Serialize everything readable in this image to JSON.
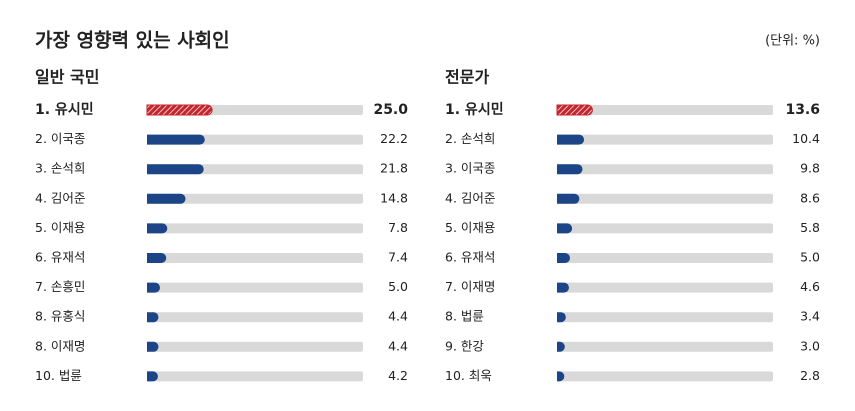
{
  "header": {
    "title": "가장 영향력 있는 사회인",
    "unit": "(단위: %)"
  },
  "chart_data": [
    {
      "type": "bar",
      "orientation": "horizontal",
      "title": "일반 국민",
      "categories": [
        "1. 유시민",
        "2. 이국종",
        "3. 손석희",
        "4. 김어준",
        "5. 이재용",
        "6. 유재석",
        "7. 손흥민",
        "8. 유홍식",
        "8. 이재명",
        "10. 법륜"
      ],
      "values": [
        25.0,
        22.2,
        21.8,
        14.8,
        7.8,
        7.4,
        5.0,
        4.4,
        4.4,
        4.2
      ],
      "value_labels": [
        "25.0",
        "22.2",
        "21.8",
        "14.8",
        "7.8",
        "7.4",
        "5.0",
        "4.4",
        "4.4",
        "4.2"
      ],
      "xlim": [
        0,
        83
      ],
      "color": "#1c4587",
      "highlight": 0,
      "highlight_color": "#c4262e"
    },
    {
      "type": "bar",
      "orientation": "horizontal",
      "title": "전문가",
      "categories": [
        "1. 유시민",
        "2. 손석희",
        "3. 이국종",
        "4. 김어준",
        "5. 이재용",
        "6. 유재석",
        "7. 이재명",
        "8. 법륜",
        "9. 한강",
        "10. 최욱"
      ],
      "values": [
        13.6,
        10.4,
        9.8,
        8.6,
        5.8,
        5.0,
        4.6,
        3.4,
        3.0,
        2.8
      ],
      "value_labels": [
        "13.6",
        "10.4",
        "9.8",
        "8.6",
        "5.8",
        "5.0",
        "4.6",
        "3.4",
        "3.0",
        "2.8"
      ],
      "xlim": [
        0,
        83
      ],
      "color": "#1c4587",
      "highlight": 0,
      "highlight_color": "#c4262e"
    }
  ]
}
